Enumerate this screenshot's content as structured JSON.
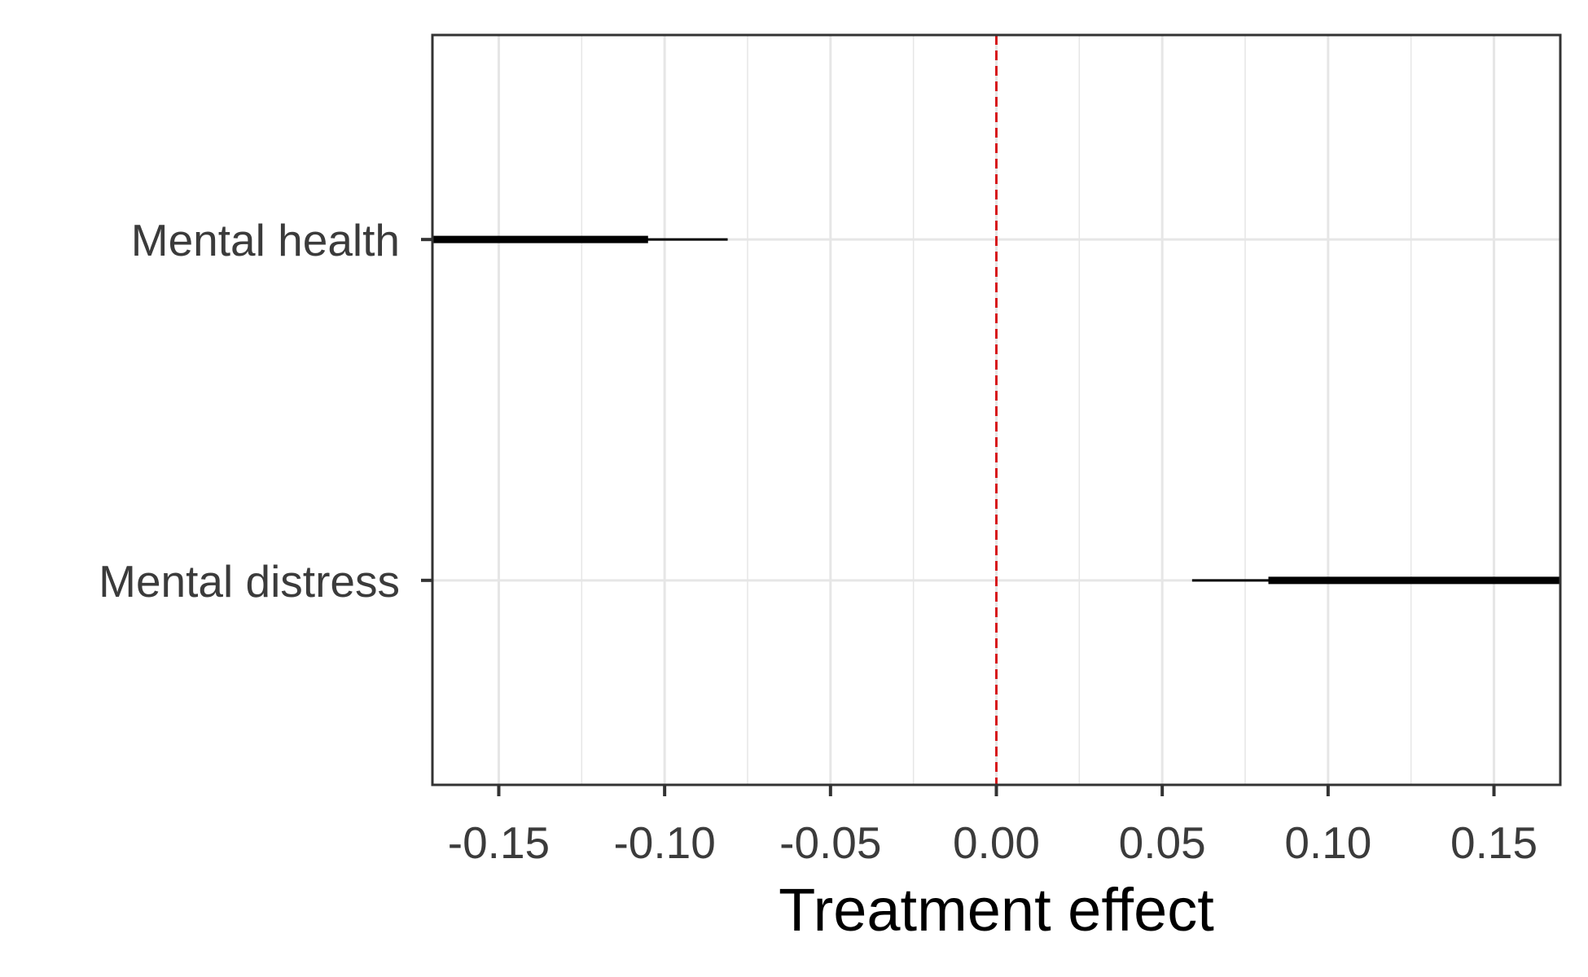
{
  "chart_data": {
    "type": "interval",
    "xlabel": "Treatment effect",
    "ylabel": "",
    "xlim": [
      -0.17,
      0.17
    ],
    "x_ticks": [
      -0.15,
      -0.1,
      -0.05,
      0.0,
      0.05,
      0.1,
      0.15
    ],
    "x_tick_labels": [
      "-0.15",
      "-0.10",
      "-0.05",
      "0.00",
      "0.05",
      "0.10",
      "0.15"
    ],
    "reference_line": {
      "x": 0.0,
      "style": "dashed",
      "color": "#d7191c"
    },
    "grid": true,
    "categories": [
      "Mental health",
      "Mental distress"
    ],
    "intervals": [
      {
        "label": "Mental health",
        "outer": [
          -0.17,
          -0.081
        ],
        "inner": [
          -0.17,
          -0.105
        ]
      },
      {
        "label": "Mental distress",
        "outer": [
          0.059,
          0.17
        ],
        "inner": [
          0.082,
          0.17
        ]
      }
    ],
    "colors": {
      "interval": "#000000",
      "grid": "#e6e6e6",
      "panel_border": "#333333",
      "tick_text": "#3b3b3b"
    }
  }
}
